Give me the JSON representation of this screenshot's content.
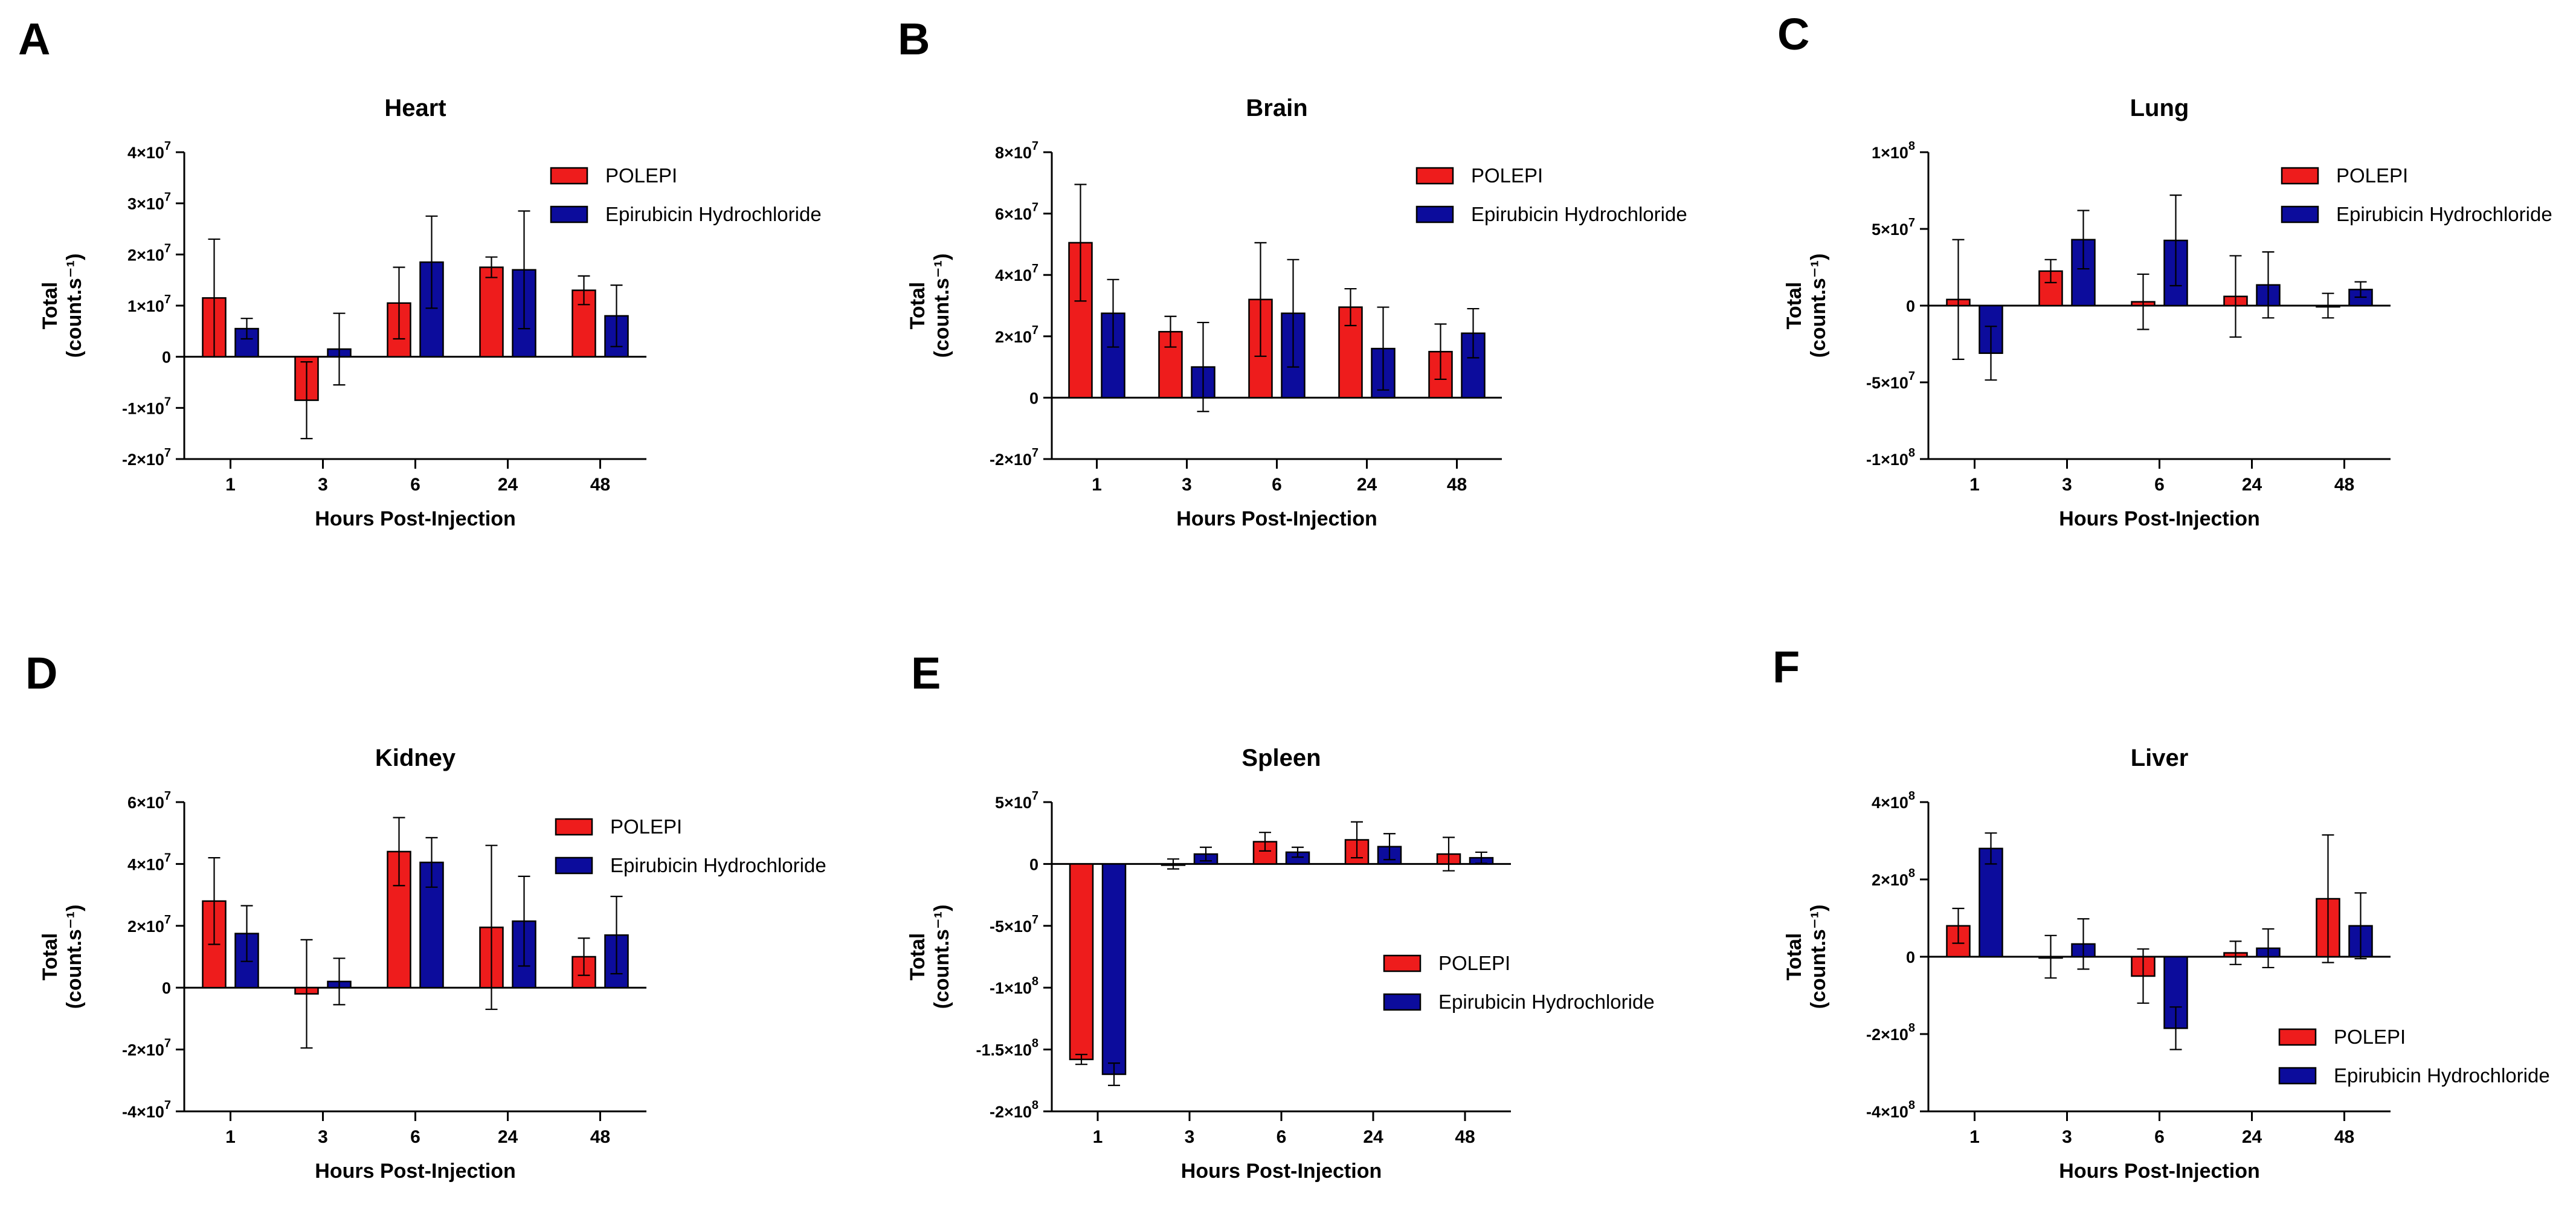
{
  "colors": {
    "POLEPI": "#ee1c1c",
    "Epirubicin Hydrochloride": "#0c0c9c",
    "axis": "#000000"
  },
  "chart_data": [
    {
      "panel": "A",
      "title": "Heart",
      "type": "bar",
      "xlabel": "Hours Post-Injection",
      "ylabel": [
        "Total",
        "(count.s⁻¹)"
      ],
      "categories": [
        "1",
        "3",
        "6",
        "24",
        "48"
      ],
      "ylim": [
        -20000000,
        40000000
      ],
      "yticks": [
        {
          "v": -20000000,
          "m": "-2",
          "e": "7"
        },
        {
          "v": -10000000,
          "m": "-1",
          "e": "7"
        },
        {
          "v": 0,
          "m": "0",
          "e": ""
        },
        {
          "v": 10000000,
          "m": "1",
          "e": "7"
        },
        {
          "v": 20000000,
          "m": "2",
          "e": "7"
        },
        {
          "v": 30000000,
          "m": "3",
          "e": "7"
        },
        {
          "v": 40000000,
          "m": "4",
          "e": "7"
        }
      ],
      "legend_position": "top-right",
      "series": [
        {
          "name": "POLEPI",
          "values": [
            11500000,
            -8500000,
            10500000,
            17500000,
            13000000
          ],
          "errors": [
            11500000,
            7500000,
            7000000,
            2000000,
            2800000
          ]
        },
        {
          "name": "Epirubicin Hydrochloride",
          "values": [
            5500000,
            1500000,
            18500000,
            17000000,
            8000000
          ],
          "errors": [
            2000000,
            7000000,
            9000000,
            11500000,
            6000000
          ]
        }
      ]
    },
    {
      "panel": "B",
      "title": "Brain",
      "type": "bar",
      "xlabel": "Hours Post-Injection",
      "ylabel": [
        "Total",
        "(count.s⁻¹)"
      ],
      "categories": [
        "1",
        "3",
        "6",
        "24",
        "48"
      ],
      "ylim": [
        -20000000,
        80000000
      ],
      "yticks": [
        {
          "v": -20000000,
          "m": "-2",
          "e": "7"
        },
        {
          "v": 0,
          "m": "0",
          "e": ""
        },
        {
          "v": 20000000,
          "m": "2",
          "e": "7"
        },
        {
          "v": 40000000,
          "m": "4",
          "e": "7"
        },
        {
          "v": 60000000,
          "m": "6",
          "e": "7"
        },
        {
          "v": 80000000,
          "m": "8",
          "e": "7"
        }
      ],
      "legend_position": "top-right",
      "series": [
        {
          "name": "POLEPI",
          "values": [
            50500000,
            21500000,
            32000000,
            29500000,
            15000000
          ],
          "errors": [
            19000000,
            5000000,
            18500000,
            6000000,
            9000000
          ]
        },
        {
          "name": "Epirubicin Hydrochloride",
          "values": [
            27500000,
            10000000,
            27500000,
            16000000,
            21000000
          ],
          "errors": [
            11000000,
            14500000,
            17500000,
            13500000,
            8000000
          ]
        }
      ]
    },
    {
      "panel": "C",
      "title": "Lung",
      "type": "bar",
      "xlabel": "Hours Post-Injection",
      "ylabel": [
        "Total",
        "(count.s⁻¹)"
      ],
      "categories": [
        "1",
        "3",
        "6",
        "24",
        "48"
      ],
      "ylim": [
        -100000000,
        100000000
      ],
      "yticks": [
        {
          "v": -100000000,
          "m": "-1",
          "e": "8"
        },
        {
          "v": -50000000,
          "m": "-5",
          "e": "7"
        },
        {
          "v": 0,
          "m": "0",
          "e": ""
        },
        {
          "v": 50000000,
          "m": "5",
          "e": "7"
        },
        {
          "v": 100000000,
          "m": "1",
          "e": "8"
        }
      ],
      "legend_position": "top-right",
      "series": [
        {
          "name": "POLEPI",
          "values": [
            4000000,
            22500000,
            2500000,
            6000000,
            0
          ],
          "errors": [
            39000000,
            7500000,
            18000000,
            26500000,
            8000000
          ]
        },
        {
          "name": "Epirubicin Hydrochloride",
          "values": [
            -31000000,
            43000000,
            42500000,
            13500000,
            10500000
          ],
          "errors": [
            17500000,
            19000000,
            29500000,
            21500000,
            5000000
          ]
        }
      ]
    },
    {
      "panel": "D",
      "title": "Kidney",
      "type": "bar",
      "xlabel": "Hours Post-Injection",
      "ylabel": [
        "Total",
        "(count.s⁻¹)"
      ],
      "categories": [
        "1",
        "3",
        "6",
        "24",
        "48"
      ],
      "ylim": [
        -40000000,
        60000000
      ],
      "yticks": [
        {
          "v": -40000000,
          "m": "-4",
          "e": "7"
        },
        {
          "v": -20000000,
          "m": "-2",
          "e": "7"
        },
        {
          "v": 0,
          "m": "0",
          "e": ""
        },
        {
          "v": 20000000,
          "m": "2",
          "e": "7"
        },
        {
          "v": 40000000,
          "m": "4",
          "e": "7"
        },
        {
          "v": 60000000,
          "m": "6",
          "e": "7"
        }
      ],
      "legend_position": "top-right",
      "series": [
        {
          "name": "POLEPI",
          "values": [
            28000000,
            -2000000,
            44000000,
            19500000,
            10000000
          ],
          "errors": [
            14000000,
            17500000,
            11000000,
            26500000,
            6000000
          ]
        },
        {
          "name": "Epirubicin Hydrochloride",
          "values": [
            17500000,
            2000000,
            40500000,
            21500000,
            17000000
          ],
          "errors": [
            9000000,
            7500000,
            8000000,
            14500000,
            12500000
          ]
        }
      ]
    },
    {
      "panel": "E",
      "title": "Spleen",
      "type": "bar",
      "xlabel": "Hours Post-Injection",
      "ylabel": [
        "Total",
        "(count.s⁻¹)"
      ],
      "categories": [
        "1",
        "3",
        "6",
        "24",
        "48"
      ],
      "ylim": [
        -200000000,
        50000000
      ],
      "yticks": [
        {
          "v": -200000000,
          "m": "-2",
          "e": "8"
        },
        {
          "v": -150000000,
          "m": "-1.5",
          "e": "8"
        },
        {
          "v": -100000000,
          "m": "-1",
          "e": "8"
        },
        {
          "v": -50000000,
          "m": "-5",
          "e": "7"
        },
        {
          "v": 0,
          "m": "0",
          "e": ""
        },
        {
          "v": 50000000,
          "m": "5",
          "e": "7"
        }
      ],
      "legend_position": "center-right",
      "series": [
        {
          "name": "POLEPI",
          "values": [
            -158000000,
            0,
            18000000,
            19500000,
            8000000
          ],
          "errors": [
            4000000,
            4000000,
            7500000,
            14500000,
            13500000
          ]
        },
        {
          "name": "Epirubicin Hydrochloride",
          "values": [
            -170000000,
            8000000,
            9500000,
            14000000,
            5000000
          ],
          "errors": [
            9000000,
            5500000,
            4000000,
            10500000,
            4500000
          ]
        }
      ]
    },
    {
      "panel": "F",
      "title": "Liver",
      "type": "bar",
      "xlabel": "Hours Post-Injection",
      "ylabel": [
        "Total",
        "(count.s⁻¹)"
      ],
      "categories": [
        "1",
        "3",
        "6",
        "24",
        "48"
      ],
      "ylim": [
        -400000000,
        400000000
      ],
      "yticks": [
        {
          "v": -400000000,
          "m": "-4",
          "e": "8"
        },
        {
          "v": -200000000,
          "m": "-2",
          "e": "8"
        },
        {
          "v": 0,
          "m": "0",
          "e": ""
        },
        {
          "v": 200000000,
          "m": "2",
          "e": "8"
        },
        {
          "v": 400000000,
          "m": "4",
          "e": "8"
        }
      ],
      "legend_position": "bottom-right",
      "series": [
        {
          "name": "POLEPI",
          "values": [
            80000000,
            0,
            -50000000,
            10000000,
            150000000
          ],
          "errors": [
            45000000,
            55000000,
            70000000,
            30000000,
            165000000
          ]
        },
        {
          "name": "Epirubicin Hydrochloride",
          "values": [
            280000000,
            33000000,
            -185000000,
            22000000,
            80000000
          ],
          "errors": [
            40000000,
            65000000,
            55000000,
            50000000,
            85000000
          ]
        }
      ]
    }
  ]
}
